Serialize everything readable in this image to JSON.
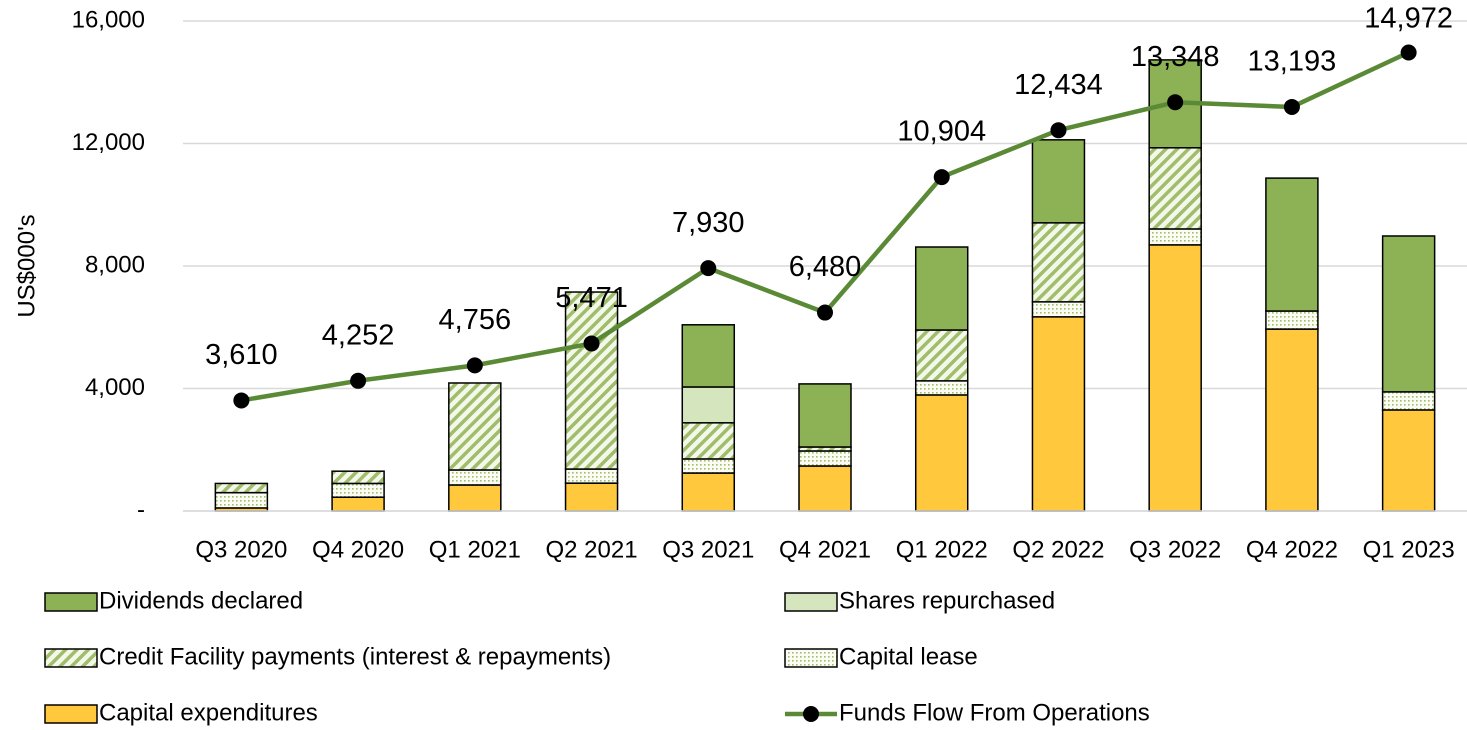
{
  "chart_data": {
    "type": "bar",
    "y_label": "US$000's",
    "categories": [
      "Q3 2020",
      "Q4 2020",
      "Q1 2021",
      "Q2 2021",
      "Q3 2021",
      "Q4 2021",
      "Q1 2022",
      "Q2 2022",
      "Q3 2022",
      "Q4 2022",
      "Q1 2023"
    ],
    "ylim": [
      0,
      16000
    ],
    "yticks": [
      {
        "value": 0,
        "label": "-"
      },
      {
        "value": 4000,
        "label": "4,000"
      },
      {
        "value": 8000,
        "label": "8,000"
      },
      {
        "value": 12000,
        "label": "12,000"
      },
      {
        "value": 16000,
        "label": "16,000"
      }
    ],
    "grid": true,
    "series": [
      {
        "name": "Capital expenditures",
        "color": "#ffc83d",
        "values": [
          100,
          450,
          850,
          910,
          1240,
          1470,
          3790,
          6340,
          8690,
          5940,
          3300
        ]
      },
      {
        "name": "Capital lease",
        "color": "#dfe9c8",
        "values": [
          500,
          450,
          490,
          460,
          460,
          490,
          460,
          490,
          520,
          590,
          590
        ]
      },
      {
        "name": "Credit Facility payments (interest & repayments)",
        "color": "#a9c27a",
        "values": [
          300,
          400,
          2840,
          5780,
          1180,
          130,
          1660,
          2580,
          2650,
          0,
          0
        ]
      },
      {
        "name": "Shares repurchased",
        "color": "#d5e6bf",
        "values": [
          0,
          0,
          0,
          0,
          1170,
          0,
          0,
          0,
          0,
          0,
          0
        ]
      },
      {
        "name": "Dividends declared",
        "color": "#8db255",
        "values": [
          0,
          0,
          0,
          0,
          2030,
          2060,
          2710,
          2710,
          2870,
          4340,
          5090
        ]
      },
      {
        "name": "Funds Flow From Operations",
        "type": "line",
        "color": "#5a8a35",
        "values": [
          3610,
          4252,
          4756,
          5471,
          7930,
          6480,
          10904,
          12434,
          13348,
          13193,
          14972
        ],
        "value_labels": [
          "3,610",
          "4,252",
          "4,756",
          "5,471",
          "7,930",
          "6,480",
          "10,904",
          "12,434",
          "13,348",
          "13,193",
          "14,972"
        ]
      }
    ]
  }
}
